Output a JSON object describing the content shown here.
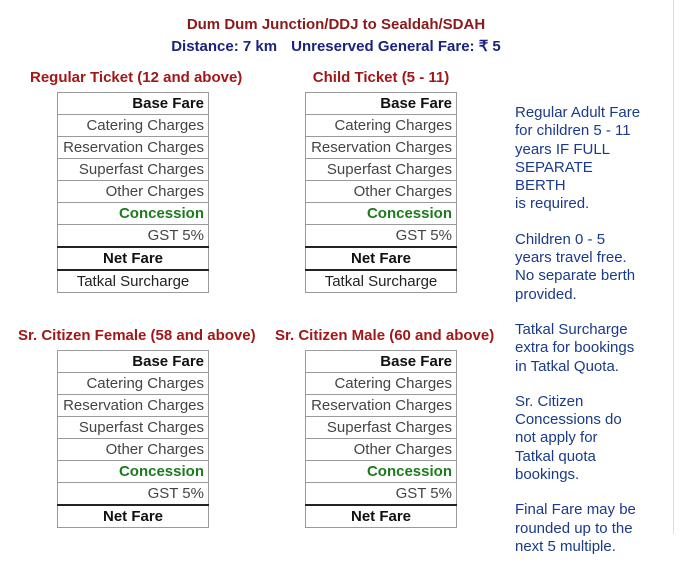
{
  "header": {
    "route": "Dum Dum Junction/DDJ to Sealdah/SDAH",
    "distance": "Distance: 7 km",
    "fare": "Unreserved General Fare: ₹ 5"
  },
  "sections": [
    {
      "title": "Regular Ticket (12 and above)",
      "rows": [
        "Base Fare",
        "Catering Charges",
        "Reservation Charges",
        "Superfast Charges",
        "Other Charges",
        "Concession",
        "GST 5%",
        "Net Fare",
        "Tatkal Surcharge"
      ]
    },
    {
      "title": "Child Ticket (5 - 11)",
      "rows": [
        "Base Fare",
        "Catering Charges",
        "Reservation Charges",
        "Superfast Charges",
        "Other Charges",
        "Concession",
        "GST 5%",
        "Net Fare",
        "Tatkal Surcharge"
      ]
    },
    {
      "title": "Sr. Citizen Female (58 and above)",
      "rows": [
        "Base Fare",
        "Catering Charges",
        "Reservation Charges",
        "Superfast Charges",
        "Other Charges",
        "Concession",
        "GST 5%",
        "Net Fare"
      ]
    },
    {
      "title": "Sr. Citizen Male (60 and above)",
      "rows": [
        "Base Fare",
        "Catering Charges",
        "Reservation Charges",
        "Superfast Charges",
        "Other Charges",
        "Concession",
        "GST 5%",
        "Net Fare"
      ]
    }
  ],
  "notes": [
    [
      "Regular Adult Fare",
      "for children 5 - 11",
      "years IF FULL",
      "SEPARATE BERTH",
      "is required."
    ],
    [
      "Children 0 - 5",
      "years travel free.",
      "No separate berth",
      "provided."
    ],
    [
      "Tatkal Surcharge",
      "extra for bookings",
      "in Tatkal Quota."
    ],
    [
      "Sr. Citizen",
      "Concessions do",
      "not apply for",
      "Tatkal quota",
      "bookings."
    ],
    [
      "Final Fare may be",
      "rounded up to the",
      "next 5 multiple."
    ]
  ]
}
